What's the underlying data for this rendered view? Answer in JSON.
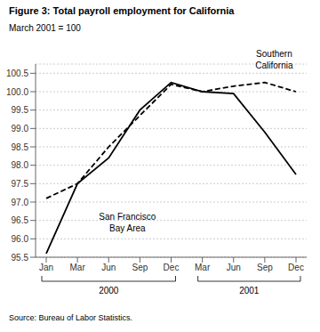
{
  "chart_data": {
    "type": "line",
    "title": "Figure 3: Total payroll employment for California",
    "subtitle": "March 2001 = 100",
    "source": "Source: Bureau of Labor Statistics.",
    "categories": [
      "Jan",
      "Mar",
      "Jun",
      "Sep",
      "Dec",
      "Mar",
      "Jun",
      "Sep",
      "Dec"
    ],
    "x_groups": [
      {
        "label": "2000",
        "size": 5
      },
      {
        "label": "2001",
        "size": 4
      }
    ],
    "series": [
      {
        "name": "San Francisco\nBay Area",
        "color": "#000000",
        "line_style": "solid",
        "values": [
          95.6,
          97.5,
          98.2,
          99.5,
          100.25,
          100.0,
          99.95,
          98.9,
          97.75
        ]
      },
      {
        "name": "Southern\nCalifornia",
        "color": "#000000",
        "line_style": "dashed",
        "values": [
          97.1,
          97.5,
          98.5,
          99.35,
          100.2,
          100.0,
          100.15,
          100.25,
          100.0
        ]
      }
    ],
    "ylim": [
      95.5,
      100.75
    ],
    "yticks": [
      95.5,
      {
        "value": 96,
        "label": "96.0"
      },
      96.5,
      {
        "value": 97,
        "label": "97.0"
      },
      97.5,
      {
        "value": 98,
        "label": "98.0"
      },
      98.5,
      {
        "value": 99,
        "label": "99.0"
      },
      99.5,
      {
        "value": 100,
        "label": "100.0"
      },
      100.5
    ],
    "grid": true
  }
}
